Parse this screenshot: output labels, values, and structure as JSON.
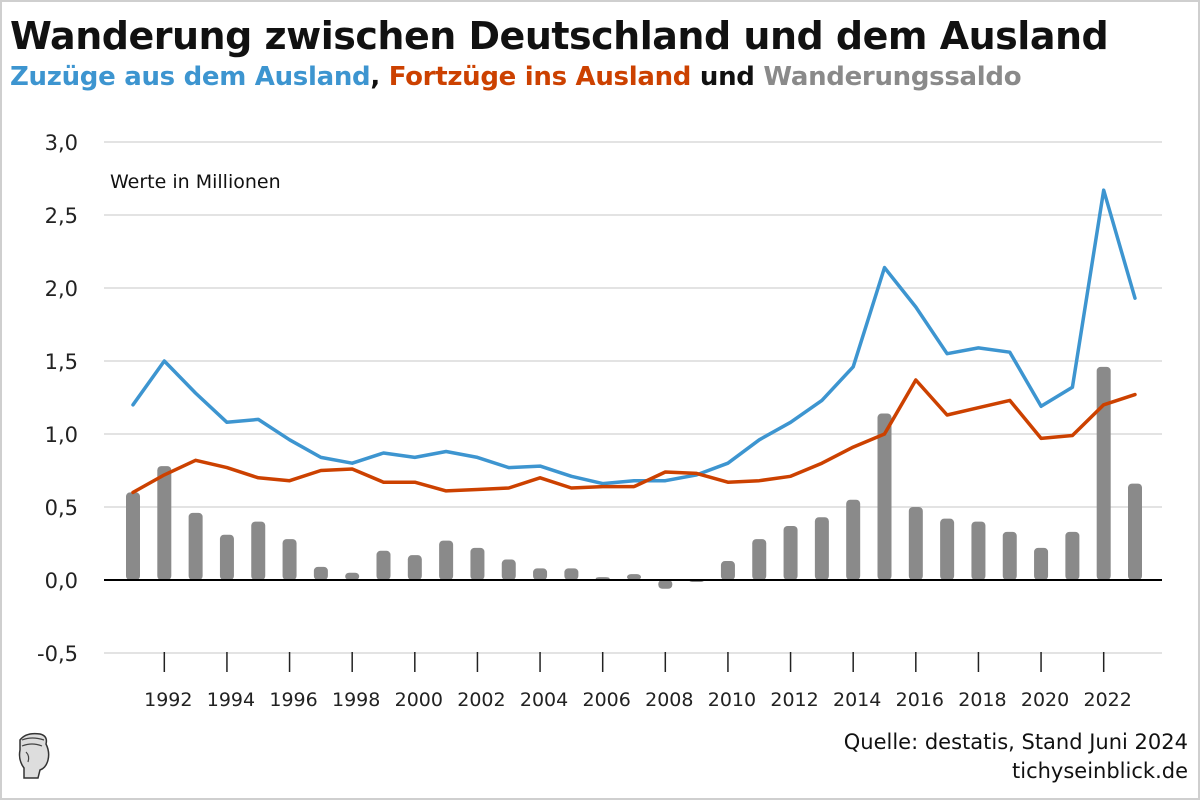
{
  "title": "Wanderung zwischen Deutschland und dem Ausland",
  "subtitle": {
    "part1": "Zuzüge aus dem Ausland",
    "sep1": ",",
    "part2": "Fortzüge ins Ausland",
    "sep2": "und",
    "part3": "Wanderungssaldo"
  },
  "annotation": "Werte in Millionen",
  "source": {
    "line1": "Quelle: destatis, Stand Juni 2024",
    "line2": "tichyseinblick.de"
  },
  "colors": {
    "zuzuege": "#3d95d0",
    "fortzuege": "#cc4100",
    "saldo": "#8a8a8a"
  },
  "chart_data": {
    "type": "bar+line",
    "title": "Wanderung zwischen Deutschland und dem Ausland",
    "xlabel": "",
    "ylabel": "Werte in Millionen",
    "ylim": [
      -0.5,
      3.0
    ],
    "yticks": [
      -0.5,
      0.0,
      0.5,
      1.0,
      1.5,
      2.0,
      2.5,
      3.0
    ],
    "ytick_labels": [
      "-0,5",
      "0,0",
      "0,5",
      "1,0",
      "1,5",
      "2,0",
      "2,5",
      "3,0"
    ],
    "grid": true,
    "x": [
      1991,
      1992,
      1993,
      1994,
      1995,
      1996,
      1997,
      1998,
      1999,
      2000,
      2001,
      2002,
      2003,
      2004,
      2005,
      2006,
      2007,
      2008,
      2009,
      2010,
      2011,
      2012,
      2013,
      2014,
      2015,
      2016,
      2017,
      2018,
      2019,
      2020,
      2021,
      2022,
      2023
    ],
    "xtick_labels": [
      "1992",
      "1994",
      "1996",
      "1998",
      "2000",
      "2002",
      "2004",
      "2006",
      "2008",
      "2010",
      "2012",
      "2014",
      "2016",
      "2018",
      "2020",
      "2022"
    ],
    "series": [
      {
        "name": "Zuzüge aus dem Ausland",
        "type": "line",
        "values": [
          1.2,
          1.5,
          1.28,
          1.08,
          1.1,
          0.96,
          0.84,
          0.8,
          0.87,
          0.84,
          0.88,
          0.84,
          0.77,
          0.78,
          0.71,
          0.66,
          0.68,
          0.68,
          0.72,
          0.8,
          0.96,
          1.08,
          1.23,
          1.46,
          2.14,
          1.87,
          1.55,
          1.59,
          1.56,
          1.19,
          1.32,
          2.67,
          1.93
        ]
      },
      {
        "name": "Fortzüge ins Ausland",
        "type": "line",
        "values": [
          0.6,
          0.72,
          0.82,
          0.77,
          0.7,
          0.68,
          0.75,
          0.76,
          0.67,
          0.67,
          0.61,
          0.62,
          0.63,
          0.7,
          0.63,
          0.64,
          0.64,
          0.74,
          0.73,
          0.67,
          0.68,
          0.71,
          0.8,
          0.91,
          1.0,
          1.37,
          1.13,
          1.18,
          1.23,
          0.97,
          0.99,
          1.2,
          1.27
        ]
      },
      {
        "name": "Wanderungssaldo",
        "type": "bar",
        "values": [
          0.6,
          0.78,
          0.46,
          0.31,
          0.4,
          0.28,
          0.09,
          0.05,
          0.2,
          0.17,
          0.27,
          0.22,
          0.14,
          0.08,
          0.08,
          0.02,
          0.04,
          -0.06,
          -0.01,
          0.13,
          0.28,
          0.37,
          0.43,
          0.55,
          1.14,
          0.5,
          0.42,
          0.4,
          0.33,
          0.22,
          0.33,
          1.46,
          0.66
        ]
      }
    ]
  }
}
